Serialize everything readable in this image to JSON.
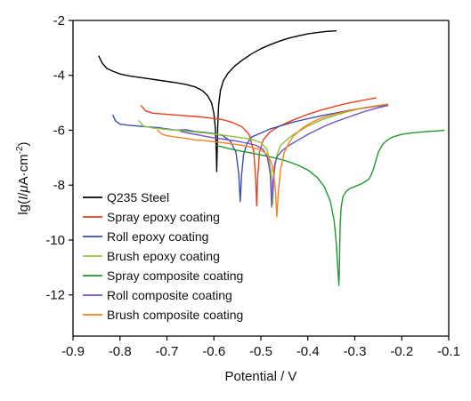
{
  "chart_data": {
    "type": "line",
    "title": "",
    "xlabel": "Potential / V",
    "ylabel_parts": [
      "lg(",
      "I",
      "/",
      "μ",
      "A·cm",
      "-2",
      ")"
    ],
    "xlim": [
      -0.9,
      -0.1
    ],
    "ylim": [
      -13.5,
      -2
    ],
    "xticks": [
      -0.9,
      -0.8,
      -0.7,
      -0.6,
      -0.5,
      -0.4,
      -0.3,
      -0.2,
      -0.1
    ],
    "xtick_labels": [
      "-0.9",
      "-0.8",
      "-0.7",
      "-0.6",
      "-0.5",
      "-0.4",
      "-0.3",
      "-0.2",
      "-0.1"
    ],
    "yticks": [
      -2,
      -4,
      -6,
      -8,
      -10,
      -12
    ],
    "ytick_labels": [
      "-2",
      "-4",
      "-6",
      "-8",
      "-10",
      "-12"
    ],
    "grid": false,
    "legend_position": "bottom-left",
    "series": [
      {
        "name": "Q235 Steel",
        "color": "#000000",
        "x": [
          -0.845,
          -0.838,
          -0.828,
          -0.815,
          -0.8,
          -0.78,
          -0.76,
          -0.74,
          -0.72,
          -0.7,
          -0.68,
          -0.66,
          -0.64,
          -0.625,
          -0.613,
          -0.605,
          -0.6,
          -0.597,
          -0.595,
          -0.594,
          -0.593,
          -0.592,
          -0.59,
          -0.586,
          -0.58,
          -0.57,
          -0.555,
          -0.54,
          -0.52,
          -0.5,
          -0.48,
          -0.46,
          -0.44,
          -0.42,
          -0.4,
          -0.38,
          -0.36,
          -0.34
        ],
        "y": [
          -3.3,
          -3.55,
          -3.75,
          -3.85,
          -3.95,
          -4.02,
          -4.07,
          -4.12,
          -4.17,
          -4.22,
          -4.27,
          -4.33,
          -4.42,
          -4.55,
          -4.75,
          -5.0,
          -5.4,
          -5.9,
          -6.7,
          -7.5,
          -6.8,
          -5.9,
          -5.1,
          -4.55,
          -4.2,
          -3.92,
          -3.65,
          -3.45,
          -3.22,
          -3.03,
          -2.88,
          -2.75,
          -2.64,
          -2.56,
          -2.49,
          -2.44,
          -2.4,
          -2.38
        ]
      },
      {
        "name": "Spray epoxy coating",
        "color": "#e8401c",
        "x": [
          -0.755,
          -0.745,
          -0.73,
          -0.7,
          -0.67,
          -0.64,
          -0.61,
          -0.58,
          -0.56,
          -0.54,
          -0.525,
          -0.515,
          -0.511,
          -0.509,
          -0.507,
          -0.503,
          -0.495,
          -0.48,
          -0.46,
          -0.43,
          -0.4,
          -0.37,
          -0.34,
          -0.31,
          -0.28,
          -0.255
        ],
        "y": [
          -5.1,
          -5.3,
          -5.38,
          -5.42,
          -5.46,
          -5.5,
          -5.55,
          -5.62,
          -5.72,
          -5.88,
          -6.15,
          -6.8,
          -7.8,
          -8.75,
          -7.8,
          -6.8,
          -6.35,
          -6.05,
          -5.85,
          -5.62,
          -5.42,
          -5.26,
          -5.12,
          -5.0,
          -4.9,
          -4.82
        ]
      },
      {
        "name": "Roll epoxy coating",
        "color": "#3a4fb0",
        "x": [
          -0.815,
          -0.81,
          -0.8,
          -0.78,
          -0.76,
          -0.74,
          -0.72,
          -0.7,
          -0.68,
          -0.66,
          -0.64,
          -0.62,
          -0.6,
          -0.58,
          -0.565,
          -0.553,
          -0.547,
          -0.544,
          -0.541,
          -0.537,
          -0.53,
          -0.52,
          -0.5,
          -0.48,
          -0.46,
          -0.43,
          -0.4,
          -0.37,
          -0.34,
          -0.31,
          -0.28,
          -0.25,
          -0.23
        ],
        "y": [
          -5.45,
          -5.65,
          -5.78,
          -5.82,
          -5.85,
          -5.88,
          -5.9,
          -5.95,
          -6.0,
          -5.98,
          -6.05,
          -6.08,
          -6.12,
          -6.2,
          -6.4,
          -6.8,
          -7.6,
          -8.6,
          -7.6,
          -6.9,
          -6.5,
          -6.25,
          -6.1,
          -5.95,
          -5.85,
          -5.7,
          -5.58,
          -5.47,
          -5.37,
          -5.27,
          -5.19,
          -5.12,
          -5.08
        ]
      },
      {
        "name": "Brush epoxy coating",
        "color": "#8cc63f",
        "x": [
          -0.76,
          -0.75,
          -0.73,
          -0.7,
          -0.67,
          -0.64,
          -0.61,
          -0.58,
          -0.55,
          -0.52,
          -0.5,
          -0.487,
          -0.479,
          -0.475,
          -0.471,
          -0.466,
          -0.458,
          -0.445,
          -0.43,
          -0.4,
          -0.37,
          -0.34,
          -0.31,
          -0.28,
          -0.25,
          -0.23
        ],
        "y": [
          -5.65,
          -5.85,
          -5.92,
          -5.97,
          -6.02,
          -6.07,
          -6.12,
          -6.18,
          -6.25,
          -6.33,
          -6.45,
          -6.7,
          -7.4,
          -8.7,
          -7.5,
          -6.9,
          -6.55,
          -6.35,
          -6.15,
          -5.85,
          -5.62,
          -5.45,
          -5.3,
          -5.18,
          -5.1,
          -5.05
        ]
      },
      {
        "name": "Spray composite coating",
        "color": "#1f9a2e",
        "x": [
          -0.595,
          -0.58,
          -0.56,
          -0.54,
          -0.52,
          -0.5,
          -0.48,
          -0.46,
          -0.44,
          -0.42,
          -0.4,
          -0.38,
          -0.365,
          -0.352,
          -0.344,
          -0.339,
          -0.336,
          -0.334,
          -0.333,
          -0.332,
          -0.331,
          -0.329,
          -0.325,
          -0.318,
          -0.31,
          -0.3,
          -0.29,
          -0.28,
          -0.27,
          -0.265,
          -0.26,
          -0.255,
          -0.25,
          -0.24,
          -0.23,
          -0.22,
          -0.2,
          -0.18,
          -0.16,
          -0.14,
          -0.12,
          -0.11
        ],
        "y": [
          -6.55,
          -6.62,
          -6.7,
          -6.77,
          -6.83,
          -6.9,
          -6.97,
          -7.05,
          -7.15,
          -7.28,
          -7.45,
          -7.72,
          -8.05,
          -8.6,
          -9.3,
          -10.2,
          -11.1,
          -11.65,
          -11.2,
          -10.2,
          -9.4,
          -8.8,
          -8.4,
          -8.22,
          -8.12,
          -8.05,
          -7.98,
          -7.9,
          -7.78,
          -7.62,
          -7.4,
          -7.1,
          -6.8,
          -6.5,
          -6.35,
          -6.25,
          -6.15,
          -6.1,
          -6.07,
          -6.04,
          -6.02,
          -6.0
        ]
      },
      {
        "name": "Roll composite coating",
        "color": "#7050c8",
        "x": [
          -0.67,
          -0.65,
          -0.63,
          -0.61,
          -0.59,
          -0.57,
          -0.55,
          -0.53,
          -0.51,
          -0.495,
          -0.486,
          -0.48,
          -0.477,
          -0.474,
          -0.47,
          -0.465,
          -0.455,
          -0.44,
          -0.42,
          -0.4,
          -0.38,
          -0.36,
          -0.34,
          -0.31,
          -0.28,
          -0.25,
          -0.23
        ],
        "y": [
          -6.05,
          -6.12,
          -6.18,
          -6.25,
          -6.3,
          -6.35,
          -6.4,
          -6.47,
          -6.55,
          -6.7,
          -7.0,
          -7.6,
          -8.8,
          -7.8,
          -7.2,
          -6.95,
          -6.75,
          -6.55,
          -6.35,
          -6.15,
          -5.98,
          -5.82,
          -5.68,
          -5.5,
          -5.32,
          -5.18,
          -5.1
        ]
      },
      {
        "name": "Brush composite coating",
        "color": "#f5821f",
        "x": [
          -0.72,
          -0.71,
          -0.7,
          -0.68,
          -0.66,
          -0.64,
          -0.62,
          -0.6,
          -0.58,
          -0.56,
          -0.54,
          -0.52,
          -0.5,
          -0.485,
          -0.475,
          -0.469,
          -0.466,
          -0.463,
          -0.458,
          -0.45,
          -0.44,
          -0.43,
          -0.41,
          -0.39,
          -0.37,
          -0.34,
          -0.31,
          -0.28,
          -0.25,
          -0.23
        ],
        "y": [
          -6.0,
          -6.15,
          -6.2,
          -6.25,
          -6.3,
          -6.35,
          -6.38,
          -6.42,
          -6.45,
          -6.5,
          -6.55,
          -6.62,
          -6.72,
          -6.9,
          -7.3,
          -8.2,
          -9.15,
          -8.3,
          -7.4,
          -6.8,
          -6.45,
          -6.2,
          -5.9,
          -5.7,
          -5.55,
          -5.4,
          -5.28,
          -5.18,
          -5.1,
          -5.05
        ]
      }
    ]
  }
}
